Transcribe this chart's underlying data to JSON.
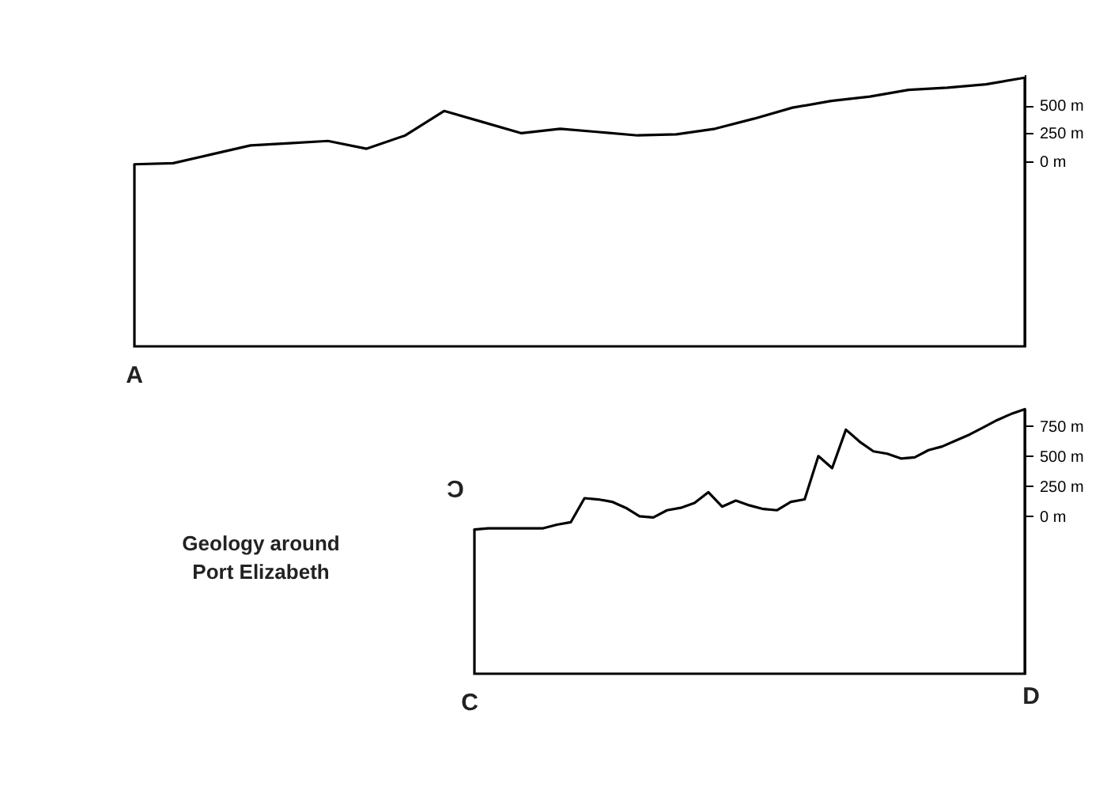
{
  "chart_data": [
    {
      "type": "line",
      "categories": [
        null,
        null,
        null,
        null,
        null,
        null,
        null,
        null,
        null,
        null,
        null,
        null,
        null,
        null,
        null,
        null,
        null,
        null,
        null,
        null,
        null,
        null,
        null,
        null
      ],
      "values": [
        -30,
        -20,
        60,
        140,
        160,
        180,
        110,
        230,
        450,
        350,
        250,
        290,
        260,
        230,
        240,
        290,
        380,
        480,
        540,
        580,
        640,
        660,
        690,
        750
      ],
      "color": "#000000",
      "ylim": [
        -1670,
        780
      ],
      "yticks": [
        {
          "value": 0,
          "label": "0 m"
        },
        {
          "value": 250,
          "label": "250 m"
        },
        {
          "value": 500,
          "label": "500 m"
        }
      ],
      "annotations": [
        "A"
      ]
    },
    {
      "type": "line",
      "categories": [
        null,
        null,
        null,
        null,
        null,
        null,
        null,
        null,
        null,
        null,
        null,
        null,
        null,
        null,
        null,
        null,
        null,
        null,
        null,
        null,
        null,
        null,
        null,
        null,
        null,
        null,
        null,
        null,
        null,
        null,
        null,
        null,
        null,
        null,
        null,
        null,
        null,
        null,
        null,
        null,
        null
      ],
      "values": [
        -110,
        -100,
        -100,
        -100,
        -100,
        -100,
        -70,
        -50,
        150,
        140,
        120,
        70,
        0,
        -10,
        50,
        70,
        110,
        200,
        80,
        130,
        90,
        60,
        50,
        120,
        140,
        500,
        400,
        720,
        620,
        540,
        520,
        480,
        490,
        550,
        580,
        630,
        680,
        740,
        800,
        850,
        890
      ],
      "color": "#000000",
      "ylim": [
        -1310,
        900
      ],
      "yticks": [
        {
          "value": 0,
          "label": "0 m"
        },
        {
          "value": 250,
          "label": "250 m"
        },
        {
          "value": 500,
          "label": "500 m"
        },
        {
          "value": 750,
          "label": "750 m"
        }
      ],
      "annotations": [
        "Geology around Port Elizabeth",
        "C",
        "C",
        "D"
      ]
    }
  ]
}
